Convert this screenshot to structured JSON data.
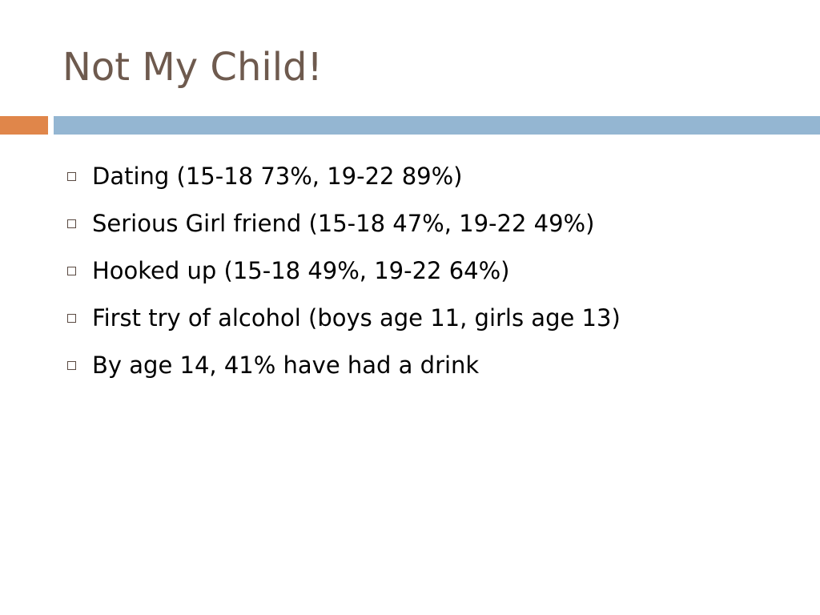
{
  "slide": {
    "title": "Not My Child!",
    "bullets": [
      {
        "text": "Dating (15-18 73%, 19-22 89%)"
      },
      {
        "text": "Serious Girl friend (15-18 47%, 19-22 49%)"
      },
      {
        "text": "Hooked up (15-18 49%, 19-22 64%)"
      },
      {
        "text": "First try of alcohol (boys age 11, girls age 13)"
      },
      {
        "text": "By age 14, 41% have had a drink"
      }
    ]
  },
  "colors": {
    "title": "#6e5a4e",
    "accent_bar": "#e0864a",
    "main_bar": "#94b6d2",
    "bullet_marker": "#5a4a42",
    "text": "#000000",
    "background": "#ffffff"
  }
}
